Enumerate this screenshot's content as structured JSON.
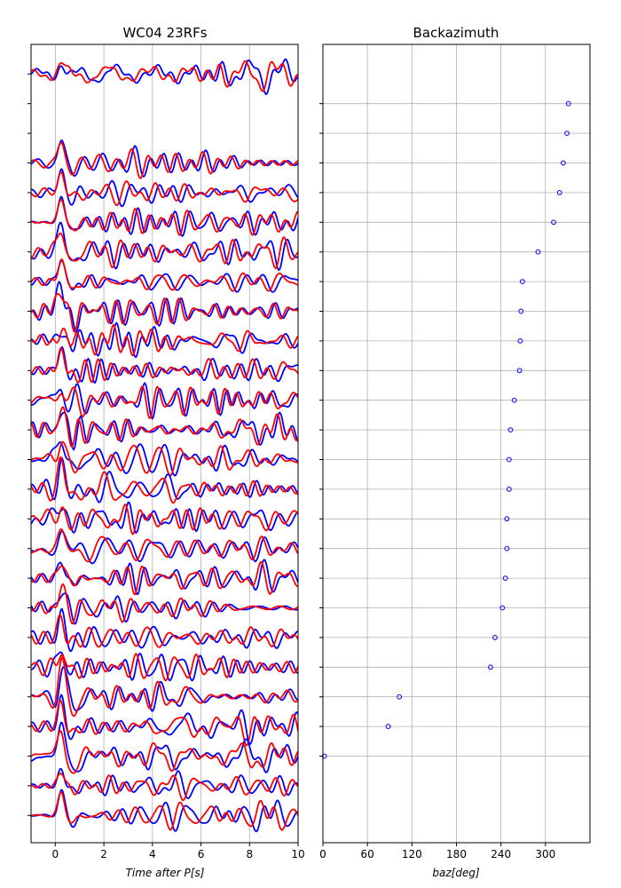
{
  "chart_data": [
    {
      "type": "line",
      "title": "WC04 23RFs",
      "xlabel": "Time after P[s]",
      "x_ticks": [
        0,
        2,
        4,
        6,
        8,
        10
      ],
      "xlim": [
        -1,
        10
      ],
      "grid": true,
      "num_traces": 23,
      "series": [
        {
          "color": "#0000ff"
        },
        {
          "color": "#ff0000"
        }
      ]
    },
    {
      "type": "scatter",
      "title": "Backazimuth",
      "xlabel": "baz[deg]",
      "x_ticks": [
        0,
        60,
        120,
        180,
        240,
        300
      ],
      "xlim": [
        0,
        360
      ],
      "grid": true,
      "marker": "open circle",
      "color": "#0000ff",
      "rows": [
        1,
        2,
        3,
        4,
        5,
        6,
        7,
        8,
        9,
        10,
        11,
        12,
        13,
        14,
        15,
        16,
        17,
        18,
        19,
        20,
        21,
        22,
        23
      ],
      "baz": [
        331,
        329,
        324,
        319,
        311,
        290,
        269,
        267,
        266,
        265,
        258,
        253,
        251,
        251,
        248,
        248,
        246,
        242,
        232,
        226,
        103,
        88,
        2
      ]
    }
  ]
}
